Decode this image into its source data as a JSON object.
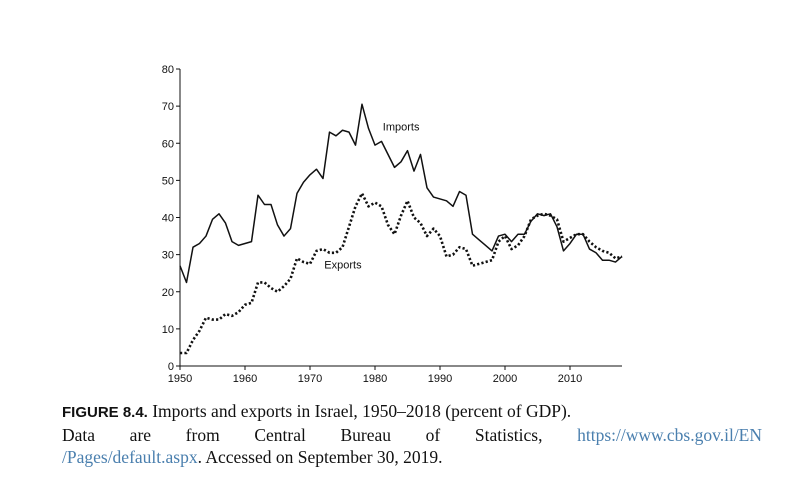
{
  "chart_data": {
    "type": "line",
    "title": "",
    "xlabel": "",
    "ylabel": "",
    "xlim": [
      1950,
      2018
    ],
    "ylim": [
      0,
      80
    ],
    "x_ticks": [
      1950,
      1960,
      1970,
      1980,
      1990,
      2000,
      2010
    ],
    "y_ticks": [
      0,
      10,
      20,
      30,
      40,
      50,
      60,
      70,
      80
    ],
    "grid": false,
    "x": [
      1950,
      1951,
      1952,
      1953,
      1954,
      1955,
      1956,
      1957,
      1958,
      1959,
      1960,
      1961,
      1962,
      1963,
      1964,
      1965,
      1966,
      1967,
      1968,
      1969,
      1970,
      1971,
      1972,
      1973,
      1974,
      1975,
      1976,
      1977,
      1978,
      1979,
      1980,
      1981,
      1982,
      1983,
      1984,
      1985,
      1986,
      1987,
      1988,
      1989,
      1990,
      1991,
      1992,
      1993,
      1994,
      1995,
      1996,
      1997,
      1998,
      1999,
      2000,
      2001,
      2002,
      2003,
      2004,
      2005,
      2006,
      2007,
      2008,
      2009,
      2010,
      2011,
      2012,
      2013,
      2014,
      2015,
      2016,
      2017,
      2018
    ],
    "series": [
      {
        "name": "Imports",
        "style": "solid",
        "values": [
          27,
          22.5,
          32,
          33,
          35,
          39.5,
          41,
          38.5,
          33.5,
          32.5,
          33,
          33.5,
          46,
          43.5,
          43.5,
          38,
          35,
          37,
          46.5,
          49.5,
          51.5,
          53,
          50.5,
          63,
          62,
          63.5,
          63,
          59.5,
          70.5,
          64,
          59.5,
          60.5,
          57,
          53.5,
          55,
          58,
          52.5,
          57,
          48,
          45.5,
          45,
          44.5,
          43,
          47,
          46,
          35.5,
          34,
          32.5,
          31,
          35,
          35.5,
          33.5,
          35.5,
          35.5,
          39,
          41,
          40.5,
          41,
          37.5,
          31,
          33,
          35.5,
          35.5,
          31.5,
          30.5,
          28.5,
          28.5,
          28,
          29.5
        ]
      },
      {
        "name": "Exports",
        "style": "dotted",
        "values": [
          3.5,
          3.5,
          7,
          9.5,
          13,
          12.5,
          12.5,
          14,
          13.5,
          14.5,
          16.5,
          17,
          22.5,
          22.5,
          21,
          20,
          21.5,
          23.5,
          29,
          28,
          27.5,
          31,
          31.5,
          30.5,
          30.5,
          32,
          37.5,
          43,
          46.5,
          43,
          44,
          43,
          38,
          35.5,
          40.5,
          44.5,
          40,
          38.5,
          35,
          37,
          35,
          29.5,
          30,
          32,
          31.5,
          27,
          27.5,
          28,
          28.5,
          33.5,
          35,
          31.5,
          32.5,
          35,
          39.5,
          40.5,
          41,
          40.5,
          39.5,
          33.5,
          34.5,
          35.5,
          35.5,
          33.5,
          32,
          31,
          30.5,
          29,
          29.5
        ]
      }
    ]
  },
  "caption": {
    "figure_label": "FIGURE 8.4.",
    "line1_text": "Imports and exports in Israel, 1950–2018 (percent of GDP).",
    "line2_text": "Data are from Central Bureau of Statistics,",
    "link_part1": "https://www.cbs.gov.il/EN",
    "link_part2": "/Pages/default.aspx",
    "line3_rest": ". Accessed on September 30, 2019."
  },
  "colors": {
    "line": "#111111",
    "link": "#4a7fae"
  }
}
